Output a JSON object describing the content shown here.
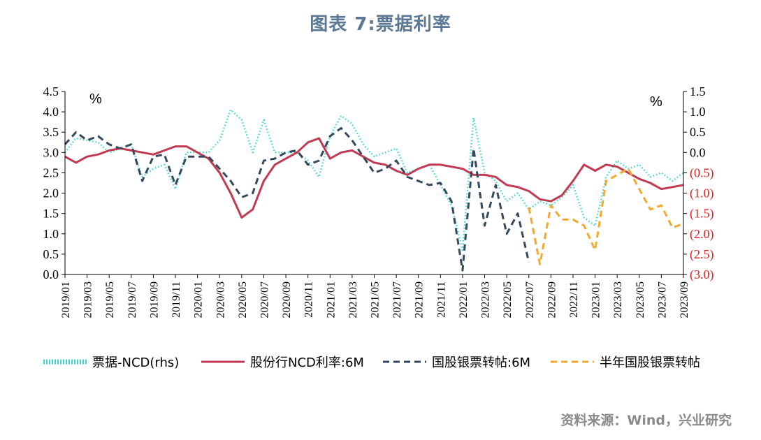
{
  "chart_data": {
    "type": "line",
    "title": "图表 7:票据利率",
    "source": "资料来源：Wind，兴业研究",
    "left_axis": {
      "unit": "%",
      "ylim": [
        0.0,
        4.5
      ],
      "tick_labels": [
        "0.0",
        "0.5",
        "1.0",
        "1.5",
        "2.0",
        "2.5",
        "3.0",
        "3.5",
        "4.0",
        "4.5"
      ]
    },
    "right_axis": {
      "unit": "%",
      "ylim": [
        -3.0,
        1.5
      ],
      "tick_labels": [
        "(3.0)",
        "(2.5)",
        "(2.0)",
        "(1.5)",
        "(1.0)",
        "(0.5)",
        "0.0",
        "0.5",
        "1.0",
        "1.5"
      ]
    },
    "x_tick_labels": [
      "2019/01",
      "2019/03",
      "2019/05",
      "2019/07",
      "2019/09",
      "2019/11",
      "2020/01",
      "2020/03",
      "2020/05",
      "2020/07",
      "2020/09",
      "2020/11",
      "2021/01",
      "2021/03",
      "2021/05",
      "2021/07",
      "2021/09",
      "2021/11",
      "2022/01",
      "2022/03",
      "2022/05",
      "2022/07",
      "2022/09",
      "2022/11",
      "2023/01",
      "2023/03",
      "2023/05",
      "2023/07",
      "2023/09"
    ],
    "x_range": [
      "2019/01",
      "2023/09"
    ],
    "legend_position": "bottom",
    "series": [
      {
        "name": "票据-NCD(rhs)",
        "axis": "right",
        "style": "dotted",
        "color": "#3ed3d1",
        "points": [
          [
            "2019/01",
            0.0
          ],
          [
            "2019/02",
            0.35
          ],
          [
            "2019/03",
            0.3
          ],
          [
            "2019/04",
            0.25
          ],
          [
            "2019/05",
            0.0
          ],
          [
            "2019/06",
            0.1
          ],
          [
            "2019/07",
            0.2
          ],
          [
            "2019/08",
            -0.6
          ],
          [
            "2019/09",
            -0.4
          ],
          [
            "2019/10",
            -0.3
          ],
          [
            "2019/11",
            -0.9
          ],
          [
            "2019/12",
            0.0
          ],
          [
            "2020/01",
            0.0
          ],
          [
            "2020/02",
            0.0
          ],
          [
            "2020/03",
            0.3
          ],
          [
            "2020/04",
            1.05
          ],
          [
            "2020/05",
            0.8
          ],
          [
            "2020/06",
            0.0
          ],
          [
            "2020/07",
            0.8
          ],
          [
            "2020/08",
            0.0
          ],
          [
            "2020/09",
            0.0
          ],
          [
            "2020/10",
            0.0
          ],
          [
            "2020/11",
            -0.2
          ],
          [
            "2020/12",
            -0.6
          ],
          [
            "2021/01",
            0.4
          ],
          [
            "2021/02",
            0.9
          ],
          [
            "2021/03",
            0.7
          ],
          [
            "2021/04",
            0.2
          ],
          [
            "2021/05",
            -0.1
          ],
          [
            "2021/06",
            0.0
          ],
          [
            "2021/07",
            0.1
          ],
          [
            "2021/08",
            -0.5
          ],
          [
            "2021/09",
            -0.4
          ],
          [
            "2021/10",
            -0.3
          ],
          [
            "2021/11",
            -0.8
          ],
          [
            "2021/12",
            -1.3
          ],
          [
            "2022/01",
            -2.4
          ],
          [
            "2022/02",
            0.85
          ],
          [
            "2022/03",
            -0.5
          ],
          [
            "2022/04",
            -0.7
          ],
          [
            "2022/05",
            -1.2
          ],
          [
            "2022/06",
            -1.0
          ],
          [
            "2022/07",
            -1.4
          ],
          [
            "2022/08",
            -1.2
          ],
          [
            "2022/09",
            -1.3
          ],
          [
            "2022/10",
            -1.1
          ],
          [
            "2022/11",
            -0.8
          ],
          [
            "2022/12",
            -1.6
          ],
          [
            "2023/01",
            -1.8
          ],
          [
            "2023/02",
            -0.6
          ],
          [
            "2023/03",
            -0.2
          ],
          [
            "2023/04",
            -0.4
          ],
          [
            "2023/05",
            -0.3
          ],
          [
            "2023/06",
            -0.6
          ],
          [
            "2023/07",
            -0.5
          ],
          [
            "2023/08",
            -0.7
          ],
          [
            "2023/09",
            -0.5
          ]
        ]
      },
      {
        "name": "股份行NCD利率:6M",
        "axis": "left",
        "style": "solid",
        "color": "#c23a51",
        "points": [
          [
            "2019/01",
            2.9
          ],
          [
            "2019/02",
            2.75
          ],
          [
            "2019/03",
            2.9
          ],
          [
            "2019/04",
            2.95
          ],
          [
            "2019/05",
            3.05
          ],
          [
            "2019/06",
            3.1
          ],
          [
            "2019/07",
            3.05
          ],
          [
            "2019/08",
            3.0
          ],
          [
            "2019/09",
            2.95
          ],
          [
            "2019/10",
            3.05
          ],
          [
            "2019/11",
            3.15
          ],
          [
            "2019/12",
            3.15
          ],
          [
            "2020/01",
            3.0
          ],
          [
            "2020/02",
            2.85
          ],
          [
            "2020/03",
            2.5
          ],
          [
            "2020/04",
            2.0
          ],
          [
            "2020/05",
            1.4
          ],
          [
            "2020/06",
            1.6
          ],
          [
            "2020/07",
            2.3
          ],
          [
            "2020/08",
            2.7
          ],
          [
            "2020/09",
            2.85
          ],
          [
            "2020/10",
            3.0
          ],
          [
            "2020/11",
            3.25
          ],
          [
            "2020/12",
            3.35
          ],
          [
            "2021/01",
            2.85
          ],
          [
            "2021/02",
            3.0
          ],
          [
            "2021/03",
            3.05
          ],
          [
            "2021/04",
            2.9
          ],
          [
            "2021/05",
            2.75
          ],
          [
            "2021/06",
            2.7
          ],
          [
            "2021/07",
            2.55
          ],
          [
            "2021/08",
            2.45
          ],
          [
            "2021/09",
            2.6
          ],
          [
            "2021/10",
            2.7
          ],
          [
            "2021/11",
            2.7
          ],
          [
            "2021/12",
            2.65
          ],
          [
            "2022/01",
            2.6
          ],
          [
            "2022/02",
            2.45
          ],
          [
            "2022/03",
            2.45
          ],
          [
            "2022/04",
            2.4
          ],
          [
            "2022/05",
            2.2
          ],
          [
            "2022/06",
            2.15
          ],
          [
            "2022/07",
            2.05
          ],
          [
            "2022/08",
            1.85
          ],
          [
            "2022/09",
            1.8
          ],
          [
            "2022/10",
            1.95
          ],
          [
            "2022/11",
            2.3
          ],
          [
            "2022/12",
            2.7
          ],
          [
            "2023/01",
            2.55
          ],
          [
            "2023/02",
            2.7
          ],
          [
            "2023/03",
            2.65
          ],
          [
            "2023/04",
            2.5
          ],
          [
            "2023/05",
            2.35
          ],
          [
            "2023/06",
            2.25
          ],
          [
            "2023/07",
            2.1
          ],
          [
            "2023/08",
            2.15
          ],
          [
            "2023/09",
            2.2
          ]
        ]
      },
      {
        "name": "国股银票转帖:6M",
        "axis": "left",
        "style": "dashed",
        "color": "#34495e",
        "points": [
          [
            "2019/01",
            3.2
          ],
          [
            "2019/02",
            3.5
          ],
          [
            "2019/03",
            3.3
          ],
          [
            "2019/04",
            3.4
          ],
          [
            "2019/05",
            3.2
          ],
          [
            "2019/06",
            3.1
          ],
          [
            "2019/07",
            3.2
          ],
          [
            "2019/08",
            2.3
          ],
          [
            "2019/09",
            2.9
          ],
          [
            "2019/10",
            2.95
          ],
          [
            "2019/11",
            2.2
          ],
          [
            "2019/12",
            2.9
          ],
          [
            "2020/01",
            2.9
          ],
          [
            "2020/02",
            2.9
          ],
          [
            "2020/03",
            2.6
          ],
          [
            "2020/04",
            2.3
          ],
          [
            "2020/05",
            1.9
          ],
          [
            "2020/06",
            2.0
          ],
          [
            "2020/07",
            2.8
          ],
          [
            "2020/08",
            2.85
          ],
          [
            "2020/09",
            3.0
          ],
          [
            "2020/10",
            3.05
          ],
          [
            "2020/11",
            2.7
          ],
          [
            "2020/12",
            2.8
          ],
          [
            "2021/01",
            3.4
          ],
          [
            "2021/02",
            3.6
          ],
          [
            "2021/03",
            3.3
          ],
          [
            "2021/04",
            2.9
          ],
          [
            "2021/05",
            2.5
          ],
          [
            "2021/06",
            2.6
          ],
          [
            "2021/07",
            2.8
          ],
          [
            "2021/08",
            2.4
          ],
          [
            "2021/09",
            2.3
          ],
          [
            "2021/10",
            2.2
          ],
          [
            "2021/11",
            2.25
          ],
          [
            "2021/12",
            1.8
          ],
          [
            "2022/01",
            0.1
          ],
          [
            "2022/02",
            3.1
          ],
          [
            "2022/03",
            1.2
          ],
          [
            "2022/04",
            2.2
          ],
          [
            "2022/05",
            1.0
          ],
          [
            "2022/06",
            1.5
          ],
          [
            "2022/07",
            0.3
          ]
        ]
      },
      {
        "name": "半年国股银票转帖",
        "axis": "left",
        "style": "dashed",
        "color": "#f3a830",
        "points": [
          [
            "2022/07",
            1.65
          ],
          [
            "2022/08",
            0.25
          ],
          [
            "2022/09",
            1.7
          ],
          [
            "2022/10",
            1.35
          ],
          [
            "2022/11",
            1.35
          ],
          [
            "2022/12",
            1.2
          ],
          [
            "2023/01",
            0.6
          ],
          [
            "2023/02",
            2.3
          ],
          [
            "2023/03",
            2.45
          ],
          [
            "2023/04",
            2.6
          ],
          [
            "2023/05",
            2.1
          ],
          [
            "2023/06",
            1.6
          ],
          [
            "2023/07",
            1.7
          ],
          [
            "2023/08",
            1.15
          ],
          [
            "2023/09",
            1.25
          ]
        ]
      }
    ]
  }
}
